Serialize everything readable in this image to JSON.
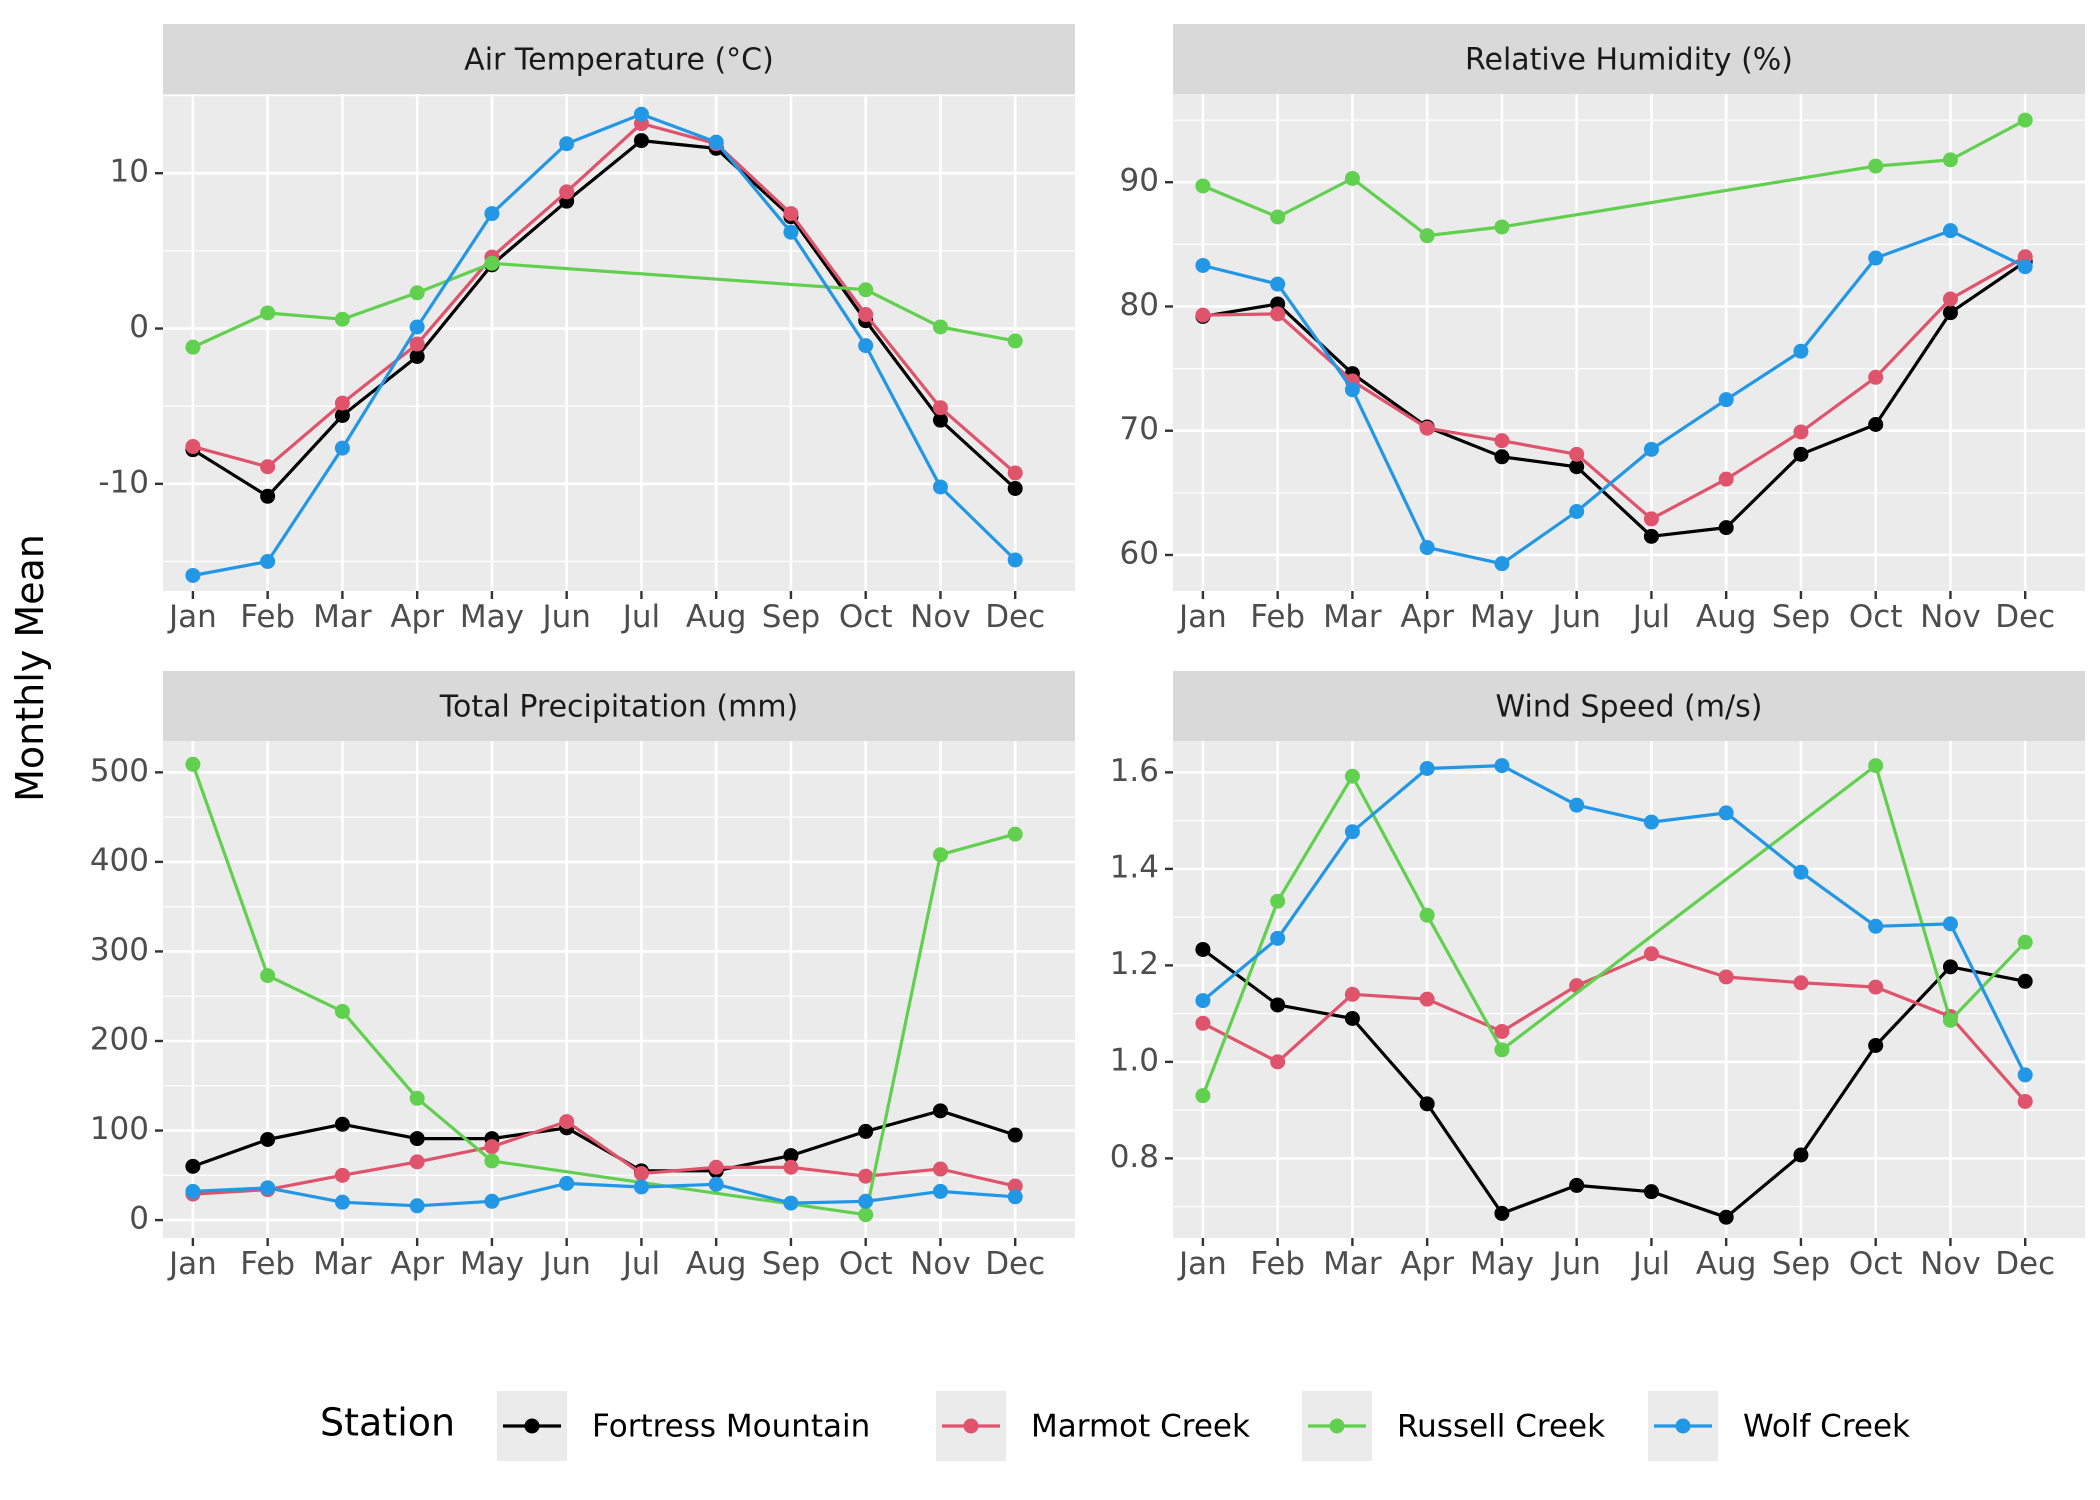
{
  "y_axis_title": "Monthly Mean",
  "legend": {
    "title": "Station",
    "placement": "bottom",
    "entries": [
      {
        "name": "Fortress Mountain",
        "color": "#000000"
      },
      {
        "name": "Marmot Creek",
        "color": "#DF536B"
      },
      {
        "name": "Russell Creek",
        "color": "#61D04F"
      },
      {
        "name": "Wolf Creek",
        "color": "#2297E6"
      }
    ]
  },
  "chart_data": [
    {
      "type": "line",
      "title": "Air Temperature (°C)",
      "x": [
        "Jan",
        "Feb",
        "Mar",
        "Apr",
        "May",
        "Jun",
        "Jul",
        "Aug",
        "Sep",
        "Oct",
        "Nov",
        "Dec"
      ],
      "ylim": [
        -16.9,
        15.1
      ],
      "yticks": [
        -10,
        0,
        10
      ],
      "grid": true,
      "series": [
        {
          "name": "Fortress Mountain",
          "color": "#000000",
          "values": [
            -7.8,
            -10.8,
            -5.6,
            -1.8,
            4.1,
            8.2,
            12.1,
            11.6,
            7.2,
            0.5,
            -5.9,
            -10.3
          ]
        },
        {
          "name": "Marmot Creek",
          "color": "#DF536B",
          "values": [
            -7.6,
            -8.9,
            -4.8,
            -1.0,
            4.6,
            8.8,
            13.2,
            11.9,
            7.4,
            0.9,
            -5.1,
            -9.3
          ]
        },
        {
          "name": "Russell Creek",
          "color": "#61D04F",
          "values": [
            -1.2,
            1.0,
            0.6,
            2.3,
            4.2,
            null,
            null,
            null,
            null,
            2.5,
            0.1,
            -0.8
          ]
        },
        {
          "name": "Wolf Creek",
          "color": "#2297E6",
          "values": [
            -15.9,
            -15.0,
            -7.7,
            0.1,
            7.4,
            11.9,
            13.8,
            12.0,
            6.2,
            -1.1,
            -10.2,
            -14.9
          ]
        }
      ]
    },
    {
      "type": "line",
      "title": "Relative Humidity (%)",
      "x": [
        "Jan",
        "Feb",
        "Mar",
        "Apr",
        "May",
        "Jun",
        "Jul",
        "Aug",
        "Sep",
        "Oct",
        "Nov",
        "Dec"
      ],
      "ylim": [
        57.1,
        97.1
      ],
      "yticks": [
        60,
        70,
        80,
        90
      ],
      "grid": true,
      "series": [
        {
          "name": "Fortress Mountain",
          "color": "#000000",
          "values": [
            79.2,
            80.2,
            74.6,
            70.3,
            67.9,
            67.1,
            61.5,
            62.2,
            68.1,
            70.5,
            79.5,
            83.6
          ]
        },
        {
          "name": "Marmot Creek",
          "color": "#DF536B",
          "values": [
            79.3,
            79.4,
            74.0,
            70.2,
            69.2,
            68.1,
            62.9,
            66.1,
            69.9,
            74.3,
            80.6,
            84.0
          ]
        },
        {
          "name": "Russell Creek",
          "color": "#61D04F",
          "values": [
            89.7,
            87.2,
            90.3,
            85.7,
            86.4,
            null,
            null,
            null,
            null,
            91.3,
            91.8,
            95.0
          ]
        },
        {
          "name": "Wolf Creek",
          "color": "#2297E6",
          "values": [
            83.3,
            81.8,
            73.3,
            60.6,
            59.3,
            63.5,
            68.5,
            72.5,
            76.4,
            83.9,
            86.1,
            83.2
          ]
        }
      ]
    },
    {
      "type": "line",
      "title": "Total Precipitation (mm)",
      "x": [
        "Jan",
        "Feb",
        "Mar",
        "Apr",
        "May",
        "Jun",
        "Jul",
        "Aug",
        "Sep",
        "Oct",
        "Nov",
        "Dec"
      ],
      "ylim": [
        -20,
        535
      ],
      "yticks": [
        0,
        100,
        200,
        300,
        400,
        500
      ],
      "grid": true,
      "series": [
        {
          "name": "Fortress Mountain",
          "color": "#000000",
          "values": [
            60,
            90,
            107,
            91,
            91,
            103,
            55,
            55,
            72,
            99,
            122,
            95
          ]
        },
        {
          "name": "Marmot Creek",
          "color": "#DF536B",
          "values": [
            29,
            34,
            50,
            65,
            82,
            110,
            52,
            59,
            59,
            49,
            57,
            38
          ]
        },
        {
          "name": "Russell Creek",
          "color": "#61D04F",
          "values": [
            509,
            273,
            233,
            136,
            66,
            null,
            null,
            null,
            null,
            6,
            408,
            431
          ]
        },
        {
          "name": "Wolf Creek",
          "color": "#2297E6",
          "values": [
            32,
            36,
            20,
            16,
            21,
            41,
            37,
            40,
            19,
            21,
            32,
            26
          ]
        }
      ]
    },
    {
      "type": "line",
      "title": "Wind Speed (m/s)",
      "x": [
        "Jan",
        "Feb",
        "Mar",
        "Apr",
        "May",
        "Jun",
        "Jul",
        "Aug",
        "Sep",
        "Oct",
        "Nov",
        "Dec"
      ],
      "ylim": [
        0.635,
        1.665
      ],
      "yticks": [
        0.8,
        1.0,
        1.2,
        1.4,
        1.6
      ],
      "grid": true,
      "series": [
        {
          "name": "Fortress Mountain",
          "color": "#000000",
          "values": [
            1.233,
            1.118,
            1.09,
            0.913,
            0.686,
            0.744,
            0.731,
            0.678,
            0.807,
            1.034,
            1.197,
            1.167
          ]
        },
        {
          "name": "Marmot Creek",
          "color": "#DF536B",
          "values": [
            1.08,
            1.0,
            1.14,
            1.13,
            1.063,
            1.158,
            1.224,
            1.176,
            1.164,
            1.155,
            1.094,
            0.918
          ]
        },
        {
          "name": "Russell Creek",
          "color": "#61D04F",
          "values": [
            0.93,
            1.333,
            1.592,
            1.304,
            1.025,
            null,
            null,
            null,
            null,
            1.614,
            1.086,
            1.248
          ]
        },
        {
          "name": "Wolf Creek",
          "color": "#2297E6",
          "values": [
            1.127,
            1.256,
            1.477,
            1.608,
            1.614,
            1.532,
            1.497,
            1.516,
            1.393,
            1.281,
            1.286,
            0.973
          ]
        }
      ]
    }
  ]
}
